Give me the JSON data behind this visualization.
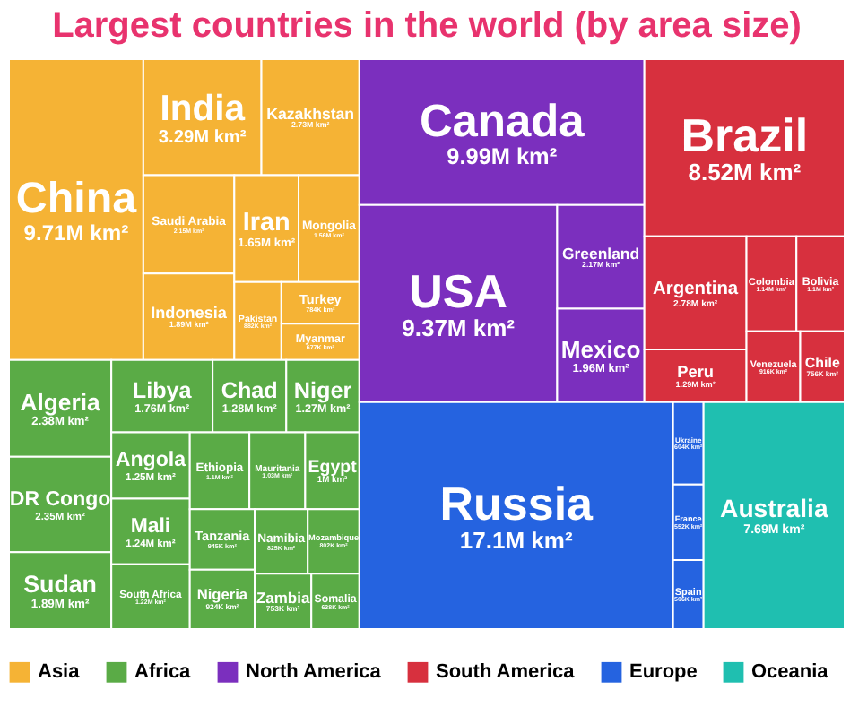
{
  "chart_data": {
    "type": "other",
    "title": "Largest countries in the world (by area size)",
    "legend": "bottom",
    "categories": [
      "China",
      "India",
      "Kazakhstan",
      "Saudi Arabia",
      "Indonesia",
      "Iran",
      "Mongolia",
      "Pakistan",
      "Turkey",
      "Myanmar",
      "Algeria",
      "DR Congo",
      "Sudan",
      "Libya",
      "Chad",
      "Niger",
      "Angola",
      "Mali",
      "South Africa",
      "Ethiopia",
      "Mauritania",
      "Egypt",
      "Tanzania",
      "Nigeria",
      "Namibia",
      "Mozambique",
      "Zambia",
      "Somalia",
      "Canada",
      "USA",
      "Greenland",
      "Mexico",
      "Brazil",
      "Argentina",
      "Peru",
      "Colombia",
      "Bolivia",
      "Venezuela",
      "Chile",
      "Russia",
      "Ukraine",
      "France",
      "Spain",
      "Australia"
    ],
    "series": [
      {
        "name": "Asia",
        "color": "#f5b335",
        "values": [
          9710000,
          3290000,
          2730000,
          2150000,
          1890000,
          1650000,
          1560000,
          882000,
          784000,
          677000,
          null,
          null,
          null,
          null,
          null,
          null,
          null,
          null,
          null,
          null,
          null,
          null,
          null,
          null,
          null,
          null,
          null,
          null,
          null,
          null,
          null,
          null,
          null,
          null,
          null,
          null,
          null,
          null,
          null,
          null,
          null,
          null,
          null,
          null
        ],
        "value_labels": [
          "9.71M km²",
          "3.29M km²",
          "2.73M km²",
          "2.15M km²",
          "1.89M km²",
          "1.65M km²",
          "1.56M km²",
          "882K km²",
          "784K km²",
          "677K km²",
          null,
          null,
          null,
          null,
          null,
          null,
          null,
          null,
          null,
          null,
          null,
          null,
          null,
          null,
          null,
          null,
          null,
          null,
          null,
          null,
          null,
          null,
          null,
          null,
          null,
          null,
          null,
          null,
          null,
          null,
          null,
          null,
          null,
          null
        ]
      },
      {
        "name": "Africa",
        "color": "#5aab46",
        "values": [
          null,
          null,
          null,
          null,
          null,
          null,
          null,
          null,
          null,
          null,
          2380000,
          2350000,
          1890000,
          1760000,
          1280000,
          1270000,
          1250000,
          1240000,
          1220000,
          1100000,
          1030000,
          1000000,
          945000,
          924000,
          825000,
          802000,
          753000,
          638000,
          null,
          null,
          null,
          null,
          null,
          null,
          null,
          null,
          null,
          null,
          null,
          null,
          null,
          null,
          null,
          null
        ],
        "value_labels": [
          null,
          null,
          null,
          null,
          null,
          null,
          null,
          null,
          null,
          null,
          "2.38M km²",
          "2.35M km²",
          "1.89M km²",
          "1.76M km²",
          "1.28M km²",
          "1.27M km²",
          "1.25M km²",
          "1.24M km²",
          "1.22M km²",
          "1.1M km²",
          "1.03M km²",
          "1M km²",
          "945K km²",
          "924K km²",
          "825K km²",
          "802K km²",
          "753K km²",
          "638K km²",
          null,
          null,
          null,
          null,
          null,
          null,
          null,
          null,
          null,
          null,
          null,
          null,
          null,
          null,
          null,
          null
        ]
      },
      {
        "name": "North America",
        "color": "#7b2fbe",
        "values": [
          null,
          null,
          null,
          null,
          null,
          null,
          null,
          null,
          null,
          null,
          null,
          null,
          null,
          null,
          null,
          null,
          null,
          null,
          null,
          null,
          null,
          null,
          null,
          null,
          null,
          null,
          null,
          null,
          9990000,
          9370000,
          2170000,
          1960000,
          null,
          null,
          null,
          null,
          null,
          null,
          null,
          null,
          null,
          null,
          null,
          null
        ],
        "value_labels": [
          null,
          null,
          null,
          null,
          null,
          null,
          null,
          null,
          null,
          null,
          null,
          null,
          null,
          null,
          null,
          null,
          null,
          null,
          null,
          null,
          null,
          null,
          null,
          null,
          null,
          null,
          null,
          null,
          "9.99M km²",
          "9.37M km²",
          "2.17M km²",
          "1.96M km²",
          null,
          null,
          null,
          null,
          null,
          null,
          null,
          null,
          null,
          null,
          null,
          null
        ]
      },
      {
        "name": "South America",
        "color": "#d7303e",
        "values": [
          null,
          null,
          null,
          null,
          null,
          null,
          null,
          null,
          null,
          null,
          null,
          null,
          null,
          null,
          null,
          null,
          null,
          null,
          null,
          null,
          null,
          null,
          null,
          null,
          null,
          null,
          null,
          null,
          null,
          null,
          null,
          null,
          8520000,
          2780000,
          1290000,
          1140000,
          1100000,
          916000,
          756000,
          null,
          null,
          null,
          null,
          null
        ],
        "value_labels": [
          null,
          null,
          null,
          null,
          null,
          null,
          null,
          null,
          null,
          null,
          null,
          null,
          null,
          null,
          null,
          null,
          null,
          null,
          null,
          null,
          null,
          null,
          null,
          null,
          null,
          null,
          null,
          null,
          null,
          null,
          null,
          null,
          "8.52M km²",
          "2.78M km²",
          "1.29M km²",
          "1.14M km²",
          "1.1M km²",
          "916K km²",
          "756K km²",
          null,
          null,
          null,
          null,
          null
        ]
      },
      {
        "name": "Europe",
        "color": "#2563e0",
        "values": [
          null,
          null,
          null,
          null,
          null,
          null,
          null,
          null,
          null,
          null,
          null,
          null,
          null,
          null,
          null,
          null,
          null,
          null,
          null,
          null,
          null,
          null,
          null,
          null,
          null,
          null,
          null,
          null,
          null,
          null,
          null,
          null,
          null,
          null,
          null,
          null,
          null,
          null,
          null,
          17100000,
          604000,
          552000,
          506000,
          null
        ],
        "value_labels": [
          null,
          null,
          null,
          null,
          null,
          null,
          null,
          null,
          null,
          null,
          null,
          null,
          null,
          null,
          null,
          null,
          null,
          null,
          null,
          null,
          null,
          null,
          null,
          null,
          null,
          null,
          null,
          null,
          null,
          null,
          null,
          null,
          null,
          null,
          null,
          null,
          null,
          null,
          null,
          "17.1M km²",
          "604K km²",
          "552K km²",
          "506K km²",
          null
        ]
      },
      {
        "name": "Oceania",
        "color": "#1fbfb0",
        "values": [
          null,
          null,
          null,
          null,
          null,
          null,
          null,
          null,
          null,
          null,
          null,
          null,
          null,
          null,
          null,
          null,
          null,
          null,
          null,
          null,
          null,
          null,
          null,
          null,
          null,
          null,
          null,
          null,
          null,
          null,
          null,
          null,
          null,
          null,
          null,
          null,
          null,
          null,
          null,
          null,
          null,
          null,
          null,
          7690000
        ],
        "value_labels": [
          null,
          null,
          null,
          null,
          null,
          null,
          null,
          null,
          null,
          null,
          null,
          null,
          null,
          null,
          null,
          null,
          null,
          null,
          null,
          null,
          null,
          null,
          null,
          null,
          null,
          null,
          null,
          null,
          null,
          null,
          null,
          null,
          null,
          null,
          null,
          null,
          null,
          null,
          null,
          null,
          null,
          null,
          null,
          "7.69M km²"
        ]
      }
    ]
  }
}
